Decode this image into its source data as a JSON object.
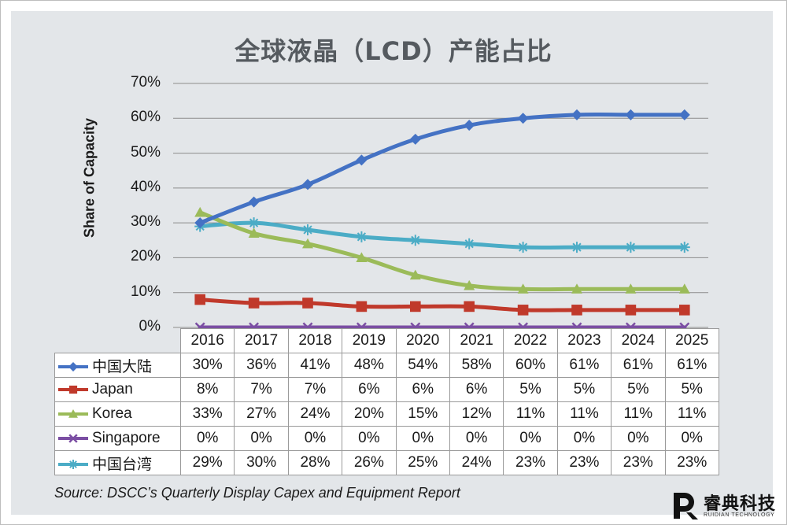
{
  "chart_data": {
    "type": "line",
    "title": "全球液晶（LCD）产能占比",
    "ylabel": "Share of Capacity",
    "xlabel": "",
    "ylim": [
      0,
      70
    ],
    "yticks": [
      "0%",
      "10%",
      "20%",
      "30%",
      "40%",
      "50%",
      "60%",
      "70%"
    ],
    "categories": [
      "2016",
      "2017",
      "2018",
      "2019",
      "2020",
      "2021",
      "2022",
      "2023",
      "2024",
      "2025"
    ],
    "grid": true,
    "legend": "data-table",
    "series": [
      {
        "name": "中国大陆",
        "color": "#4472c4",
        "marker": "diamond",
        "values": [
          30,
          36,
          41,
          48,
          54,
          58,
          60,
          61,
          61,
          61
        ],
        "labels": [
          "30%",
          "36%",
          "41%",
          "48%",
          "54%",
          "58%",
          "60%",
          "61%",
          "61%",
          "61%"
        ]
      },
      {
        "name": "Japan",
        "color": "#c0392b",
        "marker": "square",
        "values": [
          8,
          7,
          7,
          6,
          6,
          6,
          5,
          5,
          5,
          5
        ],
        "labels": [
          "8%",
          "7%",
          "7%",
          "6%",
          "6%",
          "6%",
          "5%",
          "5%",
          "5%",
          "5%"
        ]
      },
      {
        "name": "Korea",
        "color": "#9bbb59",
        "marker": "triangle",
        "values": [
          33,
          27,
          24,
          20,
          15,
          12,
          11,
          11,
          11,
          11
        ],
        "labels": [
          "33%",
          "27%",
          "24%",
          "20%",
          "15%",
          "12%",
          "11%",
          "11%",
          "11%",
          "11%"
        ]
      },
      {
        "name": "Singapore",
        "color": "#7b4ea3",
        "marker": "x",
        "values": [
          0,
          0,
          0,
          0,
          0,
          0,
          0,
          0,
          0,
          0
        ],
        "labels": [
          "0%",
          "0%",
          "0%",
          "0%",
          "0%",
          "0%",
          "0%",
          "0%",
          "0%",
          "0%"
        ]
      },
      {
        "name": "中国台湾",
        "color": "#4bacc6",
        "marker": "star",
        "values": [
          29,
          30,
          28,
          26,
          25,
          24,
          23,
          23,
          23,
          23
        ],
        "labels": [
          "29%",
          "30%",
          "28%",
          "26%",
          "25%",
          "24%",
          "23%",
          "23%",
          "23%",
          "23%"
        ]
      }
    ]
  },
  "source": "Source: DSCC’s Quarterly Display Capex and Equipment Report",
  "logo": {
    "name_cn": "睿典科技",
    "name_en": "RUIDIAN TECHNOLOGY"
  }
}
